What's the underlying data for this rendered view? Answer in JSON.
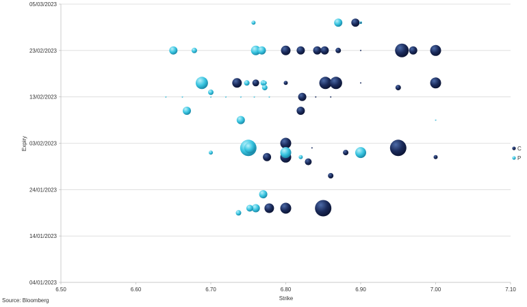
{
  "chart_data": {
    "type": "scatter",
    "subtype": "bubble",
    "xlabel": "Strike",
    "ylabel": "Expiry",
    "x_ticks": [
      "6.50",
      "6.60",
      "6.70",
      "6.80",
      "6.90",
      "7.00",
      "7.10"
    ],
    "xlim": [
      6.5,
      7.1
    ],
    "y_ticks": [
      "04/01/2023",
      "14/01/2023",
      "24/01/2023",
      "03/02/2023",
      "13/02/2023",
      "23/02/2023",
      "05/03/2023"
    ],
    "ylim": [
      "2023-01-04",
      "2023-03-05"
    ],
    "grid": "horizontal",
    "legend_position": "right",
    "source": "Source: Bloomberg",
    "colors": {
      "C": "#1a2a5a",
      "P": "#38c4e0"
    },
    "series": [
      {
        "name": "C",
        "points": [
          {
            "x": 6.893,
            "y": "2023-03-01",
            "size": 6
          },
          {
            "x": 6.9,
            "y": "2023-03-01",
            "size": 0
          },
          {
            "x": 6.8,
            "y": "2023-02-23",
            "size": 7
          },
          {
            "x": 6.82,
            "y": "2023-02-23",
            "size": 6
          },
          {
            "x": 6.842,
            "y": "2023-02-23",
            "size": 6
          },
          {
            "x": 6.852,
            "y": "2023-02-23",
            "size": 6
          },
          {
            "x": 6.87,
            "y": "2023-02-23",
            "size": 4
          },
          {
            "x": 6.9,
            "y": "2023-02-23",
            "size": 1
          },
          {
            "x": 6.955,
            "y": "2023-02-23",
            "size": 10
          },
          {
            "x": 6.97,
            "y": "2023-02-23",
            "size": 6
          },
          {
            "x": 7.0,
            "y": "2023-02-23",
            "size": 8
          },
          {
            "x": 6.735,
            "y": "2023-02-16",
            "size": 7
          },
          {
            "x": 6.76,
            "y": "2023-02-16",
            "size": 5
          },
          {
            "x": 6.8,
            "y": "2023-02-16",
            "size": 3
          },
          {
            "x": 6.853,
            "y": "2023-02-16",
            "size": 9
          },
          {
            "x": 6.867,
            "y": "2023-02-16",
            "size": 9
          },
          {
            "x": 6.9,
            "y": "2023-02-16",
            "size": 1
          },
          {
            "x": 7.0,
            "y": "2023-02-16",
            "size": 8
          },
          {
            "x": 6.95,
            "y": "2023-02-15",
            "size": 4
          },
          {
            "x": 6.822,
            "y": "2023-02-13",
            "size": 6
          },
          {
            "x": 6.84,
            "y": "2023-02-13",
            "size": 1
          },
          {
            "x": 6.86,
            "y": "2023-02-13",
            "size": 1
          },
          {
            "x": 6.82,
            "y": "2023-02-10",
            "size": 6
          },
          {
            "x": 6.8,
            "y": "2023-02-03",
            "size": 8
          },
          {
            "x": 6.95,
            "y": "2023-02-02",
            "size": 12
          },
          {
            "x": 6.835,
            "y": "2023-02-02",
            "size": 1
          },
          {
            "x": 6.88,
            "y": "2023-02-01",
            "size": 4
          },
          {
            "x": 6.8,
            "y": "2023-01-31",
            "size": 8
          },
          {
            "x": 6.775,
            "y": "2023-01-31",
            "size": 6
          },
          {
            "x": 6.83,
            "y": "2023-01-30",
            "size": 5
          },
          {
            "x": 7.0,
            "y": "2023-01-31",
            "size": 3
          },
          {
            "x": 6.86,
            "y": "2023-01-27",
            "size": 4
          },
          {
            "x": 6.778,
            "y": "2023-01-20",
            "size": 7
          },
          {
            "x": 6.8,
            "y": "2023-01-20",
            "size": 8
          },
          {
            "x": 6.85,
            "y": "2023-01-20",
            "size": 12
          }
        ]
      },
      {
        "name": "P",
        "points": [
          {
            "x": 6.757,
            "y": "2023-03-01",
            "size": 3
          },
          {
            "x": 6.87,
            "y": "2023-03-01",
            "size": 6
          },
          {
            "x": 6.9,
            "y": "2023-03-01",
            "size": 2
          },
          {
            "x": 6.65,
            "y": "2023-02-23",
            "size": 6
          },
          {
            "x": 6.678,
            "y": "2023-02-23",
            "size": 4
          },
          {
            "x": 6.76,
            "y": "2023-02-23",
            "size": 7
          },
          {
            "x": 6.768,
            "y": "2023-02-23",
            "size": 6
          },
          {
            "x": 6.688,
            "y": "2023-02-16",
            "size": 9
          },
          {
            "x": 6.748,
            "y": "2023-02-16",
            "size": 4
          },
          {
            "x": 6.77,
            "y": "2023-02-16",
            "size": 4
          },
          {
            "x": 6.772,
            "y": "2023-02-16",
            "size": 3
          },
          {
            "x": 6.772,
            "y": "2023-02-15",
            "size": 4
          },
          {
            "x": 6.7,
            "y": "2023-02-14",
            "size": 4
          },
          {
            "x": 6.64,
            "y": "2023-02-13",
            "size": 1
          },
          {
            "x": 6.662,
            "y": "2023-02-13",
            "size": 1
          },
          {
            "x": 6.7,
            "y": "2023-02-13",
            "size": 1
          },
          {
            "x": 6.72,
            "y": "2023-02-13",
            "size": 1
          },
          {
            "x": 6.74,
            "y": "2023-02-13",
            "size": 1
          },
          {
            "x": 6.758,
            "y": "2023-02-13",
            "size": 1
          },
          {
            "x": 6.778,
            "y": "2023-02-13",
            "size": 1
          },
          {
            "x": 6.668,
            "y": "2023-02-10",
            "size": 6
          },
          {
            "x": 6.74,
            "y": "2023-02-08",
            "size": 6
          },
          {
            "x": 7.0,
            "y": "2023-02-08",
            "size": 1
          },
          {
            "x": 6.75,
            "y": "2023-02-02",
            "size": 12
          },
          {
            "x": 6.752,
            "y": "2023-02-02",
            "size": 8
          },
          {
            "x": 6.7,
            "y": "2023-02-01",
            "size": 3
          },
          {
            "x": 6.8,
            "y": "2023-02-01",
            "size": 8
          },
          {
            "x": 6.9,
            "y": "2023-02-01",
            "size": 8
          },
          {
            "x": 6.82,
            "y": "2023-01-31",
            "size": 3
          },
          {
            "x": 6.77,
            "y": "2023-01-23",
            "size": 6
          },
          {
            "x": 6.752,
            "y": "2023-01-20",
            "size": 5
          },
          {
            "x": 6.76,
            "y": "2023-01-20",
            "size": 6
          },
          {
            "x": 6.737,
            "y": "2023-01-19",
            "size": 4
          }
        ]
      }
    ]
  }
}
